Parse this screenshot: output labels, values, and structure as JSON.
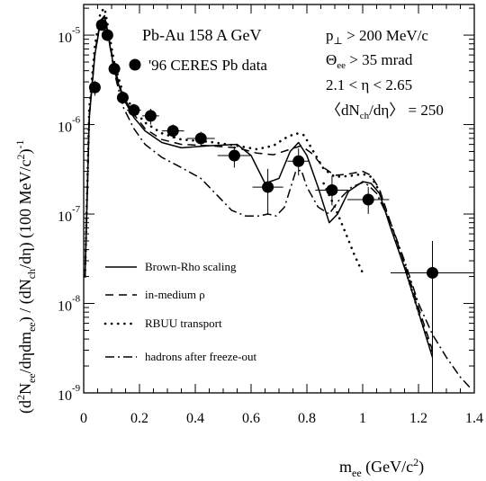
{
  "chart_data": {
    "type": "scatter",
    "title": "Pb-Au 158 A GeV",
    "ylabel_parts": {
      "a": "(d",
      "b": "2",
      "c": "N",
      "d": "ee",
      "e": "/dηdm",
      "f": "ee",
      "g": ") / (dN",
      "h": "ch",
      "i": "/dη) (100 MeV/c",
      "j": "2",
      "k": ")",
      "l": "-1"
    },
    "xlabel_parts": {
      "a": "m",
      "b": "ee",
      "c": " (GeV/c",
      "d": "2",
      "e": ")"
    },
    "xlim": [
      0,
      1.4
    ],
    "ylim": [
      1e-09,
      2.2e-05
    ],
    "yscale": "log",
    "x_ticks": [
      "0",
      "0.2",
      "0.4",
      "0.6",
      "0.8",
      "1",
      "1.2",
      "1.4"
    ],
    "y_ticks": [
      {
        "base": "10",
        "exp": "-5",
        "value": 1e-05
      },
      {
        "base": "10",
        "exp": "-6",
        "value": 1e-06
      },
      {
        "base": "10",
        "exp": "-7",
        "value": 1e-07
      },
      {
        "base": "10",
        "exp": "-8",
        "value": 1e-08
      },
      {
        "base": "10",
        "exp": "-9",
        "value": 1e-09
      }
    ],
    "cuts": {
      "l1a": "p",
      "l1b": "⊥",
      "l1c": " > 200 MeV/c",
      "l2a": "Θ",
      "l2b": "ee",
      "l2c": " > 35 mrad",
      "l3": "2.1 < η < 2.65",
      "l4a": "〈dN",
      "l4b": "ch",
      "l4c": "/dη〉 = 250"
    },
    "data_series": {
      "name": "'96 CERES Pb data",
      "points": [
        {
          "x": 0.04,
          "y": 2.6e-06,
          "xerr": 0.01,
          "yerr": [
            5e-07,
            5e-07
          ]
        },
        {
          "x": 0.065,
          "y": 1.3e-05,
          "xerr": 0.01,
          "yerr": [
            1.5e-06,
            1.5e-06
          ]
        },
        {
          "x": 0.085,
          "y": 1e-05,
          "xerr": 0.01,
          "yerr": [
            1.2e-06,
            1.2e-06
          ]
        },
        {
          "x": 0.11,
          "y": 4.2e-06,
          "xerr": 0.013,
          "yerr": [
            6e-07,
            6e-07
          ]
        },
        {
          "x": 0.14,
          "y": 2e-06,
          "xerr": 0.02,
          "yerr": [
            3e-07,
            3e-07
          ]
        },
        {
          "x": 0.18,
          "y": 1.45e-06,
          "xerr": 0.025,
          "yerr": [
            2.5e-07,
            2.5e-07
          ]
        },
        {
          "x": 0.24,
          "y": 1.25e-06,
          "xerr": 0.03,
          "yerr": [
            2.5e-07,
            2.5e-07
          ]
        },
        {
          "x": 0.32,
          "y": 8.5e-07,
          "xerr": 0.04,
          "yerr": [
            1.5e-07,
            1.5e-07
          ]
        },
        {
          "x": 0.42,
          "y": 7e-07,
          "xerr": 0.05,
          "yerr": [
            1.3e-07,
            1.3e-07
          ]
        },
        {
          "x": 0.54,
          "y": 4.5e-07,
          "xerr": 0.06,
          "yerr": [
            1.2e-07,
            1.2e-07
          ]
        },
        {
          "x": 0.66,
          "y": 2e-07,
          "xerr": 0.055,
          "yerr": [
            1e-07,
            1.2e-07
          ]
        },
        {
          "x": 0.77,
          "y": 3.9e-07,
          "xerr": 0.04,
          "yerr": [
            1.2e-07,
            1.5e-07
          ]
        },
        {
          "x": 0.89,
          "y": 1.85e-07,
          "xerr": 0.06,
          "yerr": [
            6e-08,
            8e-08
          ]
        },
        {
          "x": 1.02,
          "y": 1.45e-07,
          "xerr": 0.075,
          "yerr": [
            4.5e-08,
            5.5e-08
          ]
        },
        {
          "x": 1.25,
          "y": 2.2e-08,
          "xerr": 0.15,
          "yerr": [
            2.1e-08,
            2.8e-08
          ]
        }
      ]
    },
    "series": [
      {
        "name": "Brown-Rho scaling",
        "dash": "none",
        "x": [
          0.005,
          0.02,
          0.04,
          0.06,
          0.075,
          0.09,
          0.11,
          0.14,
          0.18,
          0.22,
          0.28,
          0.35,
          0.45,
          0.55,
          0.6,
          0.65,
          0.7,
          0.74,
          0.77,
          0.8,
          0.84,
          0.88,
          0.91,
          0.95,
          1.0,
          1.03,
          1.06,
          1.1,
          1.15,
          1.2,
          1.25
        ],
        "y": [
          2e-08,
          1.2e-06,
          6e-06,
          1.4e-05,
          1.6e-05,
          9e-06,
          4e-06,
          2e-06,
          1.2e-06,
          8.5e-07,
          6.3e-07,
          5.5e-07,
          5.8e-07,
          6e-07,
          4.5e-07,
          2.2e-07,
          2.5e-07,
          5e-07,
          6.3e-07,
          4.5e-07,
          2e-07,
          8e-08,
          1e-07,
          1.8e-07,
          2.3e-07,
          2.2e-07,
          1.7e-07,
          7e-08,
          2.5e-08,
          8e-09,
          2.5e-09
        ]
      },
      {
        "name": "in-medium ρ",
        "dash": "9,6",
        "x": [
          0.005,
          0.02,
          0.04,
          0.06,
          0.075,
          0.09,
          0.11,
          0.14,
          0.18,
          0.22,
          0.28,
          0.35,
          0.45,
          0.55,
          0.62,
          0.68,
          0.74,
          0.78,
          0.82,
          0.86,
          0.9,
          0.95,
          1.0,
          1.03,
          1.06,
          1.1,
          1.15,
          1.2,
          1.25
        ],
        "y": [
          2e-08,
          1.3e-06,
          6.5e-06,
          1.45e-05,
          1.65e-05,
          9.5e-06,
          4.3e-06,
          2.1e-06,
          1.3e-06,
          9e-07,
          6.8e-07,
          6e-07,
          5.8e-07,
          5.5e-07,
          4.8e-07,
          4.6e-07,
          5.3e-07,
          5.8e-07,
          4.7e-07,
          3.3e-07,
          2.7e-07,
          2.8e-07,
          3e-07,
          2.7e-07,
          1.9e-07,
          8e-08,
          2.8e-08,
          9e-09,
          3e-09
        ]
      },
      {
        "name": "RBUU transport",
        "dash": "1.5,6",
        "x": [
          0.005,
          0.02,
          0.04,
          0.06,
          0.075,
          0.09,
          0.11,
          0.14,
          0.18,
          0.22,
          0.28,
          0.35,
          0.45,
          0.55,
          0.62,
          0.68,
          0.72,
          0.76,
          0.79,
          0.82,
          0.86,
          0.9,
          0.95,
          1.0,
          1.03,
          1.06,
          1.1,
          1.15,
          1.2,
          1.25
        ],
        "y": [
          2e-08,
          1.5e-06,
          7.5e-06,
          1.8e-05,
          2e-05,
          1.1e-05,
          4.8e-06,
          2.3e-06,
          1.45e-06,
          1.05e-06,
          8e-07,
          6.8e-07,
          6.4e-07,
          5.8e-07,
          5.3e-07,
          5.8e-07,
          7e-07,
          8e-07,
          7.6e-07,
          5.2e-07,
          3.2e-07,
          2.6e-07,
          2.65e-07,
          2.8e-07,
          2.6e-07,
          1.8e-07,
          7.5e-08,
          2.6e-08,
          8e-09,
          2.7e-09
        ]
      },
      {
        "name": "hadrons after freeze-out",
        "dash": "10,4,2,4",
        "x": [
          0.005,
          0.02,
          0.04,
          0.06,
          0.075,
          0.09,
          0.11,
          0.14,
          0.18,
          0.22,
          0.28,
          0.35,
          0.42,
          0.48,
          0.53,
          0.58,
          0.63,
          0.66,
          0.69,
          0.72,
          0.76,
          0.78,
          0.8,
          0.84,
          0.88,
          0.92,
          0.96,
          1.0,
          1.02,
          1.05,
          1.1,
          1.15,
          1.2,
          1.25,
          1.3,
          1.35,
          1.39
        ],
        "y": [
          2e-08,
          1.2e-06,
          6e-06,
          1.4e-05,
          1.6e-05,
          9e-06,
          3.8e-06,
          1.6e-06,
          9e-07,
          6e-07,
          4.3e-07,
          3.3e-07,
          2.5e-07,
          1.6e-07,
          1.1e-07,
          9.5e-08,
          9.5e-08,
          1e-07,
          9.5e-08,
          1.2e-07,
          3e-07,
          3.1e-07,
          2e-07,
          1.2e-07,
          1e-07,
          1.5e-07,
          2e-07,
          2.25e-07,
          2.1e-07,
          1.7e-07,
          8e-08,
          3e-08,
          1e-08,
          4.5e-09,
          2.5e-09,
          1.5e-09,
          1.1e-09
        ]
      },
      {
        "name": "",
        "dash": "1.5,6",
        "role": "dotted-branch",
        "x": [
          0.86,
          0.9,
          0.94,
          0.97,
          1.0
        ],
        "y": [
          2.2e-07,
          1.2e-07,
          6e-08,
          3.5e-08,
          2.2e-08
        ]
      }
    ]
  }
}
